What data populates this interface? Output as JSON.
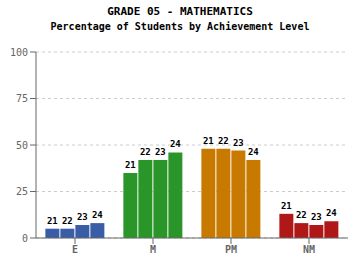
{
  "chart_data": {
    "type": "bar",
    "title": "GRADE 05 - MATHEMATICS",
    "subtitle": "Percentage of Students by Achievement Level",
    "categories": [
      "E",
      "M",
      "PM",
      "NM"
    ],
    "series": [
      {
        "name": "21",
        "values": [
          5,
          35,
          48,
          13
        ]
      },
      {
        "name": "22",
        "values": [
          5,
          42,
          48,
          8
        ]
      },
      {
        "name": "23",
        "values": [
          7,
          42,
          47,
          7
        ]
      },
      {
        "name": "24",
        "values": [
          8,
          46,
          42,
          9
        ]
      }
    ],
    "colors": [
      "#3a5da8",
      "#2a962a",
      "#c87a00",
      "#b01818"
    ],
    "ylim": [
      0,
      100
    ],
    "yticks": [
      0,
      25,
      50,
      75,
      100
    ],
    "grid": true
  }
}
